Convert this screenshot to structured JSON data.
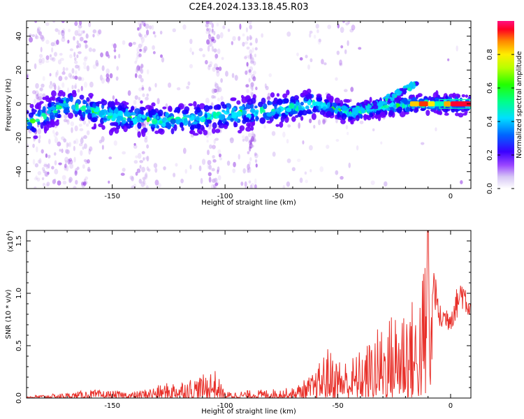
{
  "figure_title": "C2E4.2024.133.18.45.R03",
  "chart_data": [
    {
      "type": "heatmap",
      "xlabel": "Height of straight line (km)",
      "ylabel": "Frequency (Hz)",
      "xlim": [
        -188,
        9
      ],
      "ylim": [
        -50,
        49
      ],
      "xticks": [
        -150,
        -100,
        -50,
        0
      ],
      "yticks": [
        -40,
        -20,
        0,
        20,
        40
      ],
      "colorbar": {
        "label": "Normalized spectral amplitude",
        "range": [
          0,
          1
        ],
        "ticks": [
          0.0,
          0.2,
          0.4,
          0.6,
          0.8
        ],
        "tick_labels": [
          "0.0",
          "0.2",
          "0.4",
          "0.6",
          "0.8"
        ]
      },
      "ridge": {
        "description_points": [
          [
            -185,
            -10
          ],
          [
            -170,
            0
          ],
          [
            -150,
            -7
          ],
          [
            -130,
            -10
          ],
          [
            -110,
            -8
          ],
          [
            -90,
            -5
          ],
          [
            -75,
            -3
          ],
          [
            -60,
            0
          ],
          [
            -45,
            -5
          ],
          [
            -30,
            -2
          ],
          [
            -15,
            0
          ],
          [
            -10,
            0
          ],
          [
            0,
            0
          ],
          [
            9,
            0
          ]
        ],
        "branch": [
          [
            -45,
            -5
          ],
          [
            -35,
            -2
          ],
          [
            -25,
            5
          ],
          [
            -18,
            10
          ],
          [
            -15,
            13
          ]
        ]
      }
    },
    {
      "type": "line",
      "xlabel": "Height of straight line (km)",
      "ylabel": "SNR (10 * v/v)",
      "y_multiplier": "(x10",
      "y_exponent": "4",
      "xlim": [
        -188,
        9
      ],
      "ylim": [
        0,
        1.6
      ],
      "xticks": [
        -150,
        -100,
        -50,
        0
      ],
      "yticks": [
        0.0,
        0.5,
        1.0,
        1.5
      ],
      "ytick_labels": [
        "0.0",
        "0.5",
        "1.0",
        "1.5"
      ],
      "color": "#e8302a",
      "envelope": [
        [
          -188,
          0.02
        ],
        [
          -170,
          0.05
        ],
        [
          -160,
          0.08
        ],
        [
          -140,
          0.06
        ],
        [
          -125,
          0.15
        ],
        [
          -110,
          0.22
        ],
        [
          -105,
          0.3
        ],
        [
          -100,
          0.06
        ],
        [
          -85,
          0.08
        ],
        [
          -70,
          0.1
        ],
        [
          -60,
          0.25
        ],
        [
          -55,
          0.5
        ],
        [
          -50,
          0.4
        ],
        [
          -45,
          0.38
        ],
        [
          -38,
          0.5
        ],
        [
          -30,
          0.75
        ],
        [
          -25,
          0.85
        ],
        [
          -20,
          1.05
        ],
        [
          -15,
          0.9
        ],
        [
          -10,
          1.6
        ],
        [
          -5,
          0.85
        ],
        [
          0,
          0.85
        ],
        [
          5,
          1.13
        ],
        [
          9,
          0.95
        ]
      ]
    }
  ]
}
